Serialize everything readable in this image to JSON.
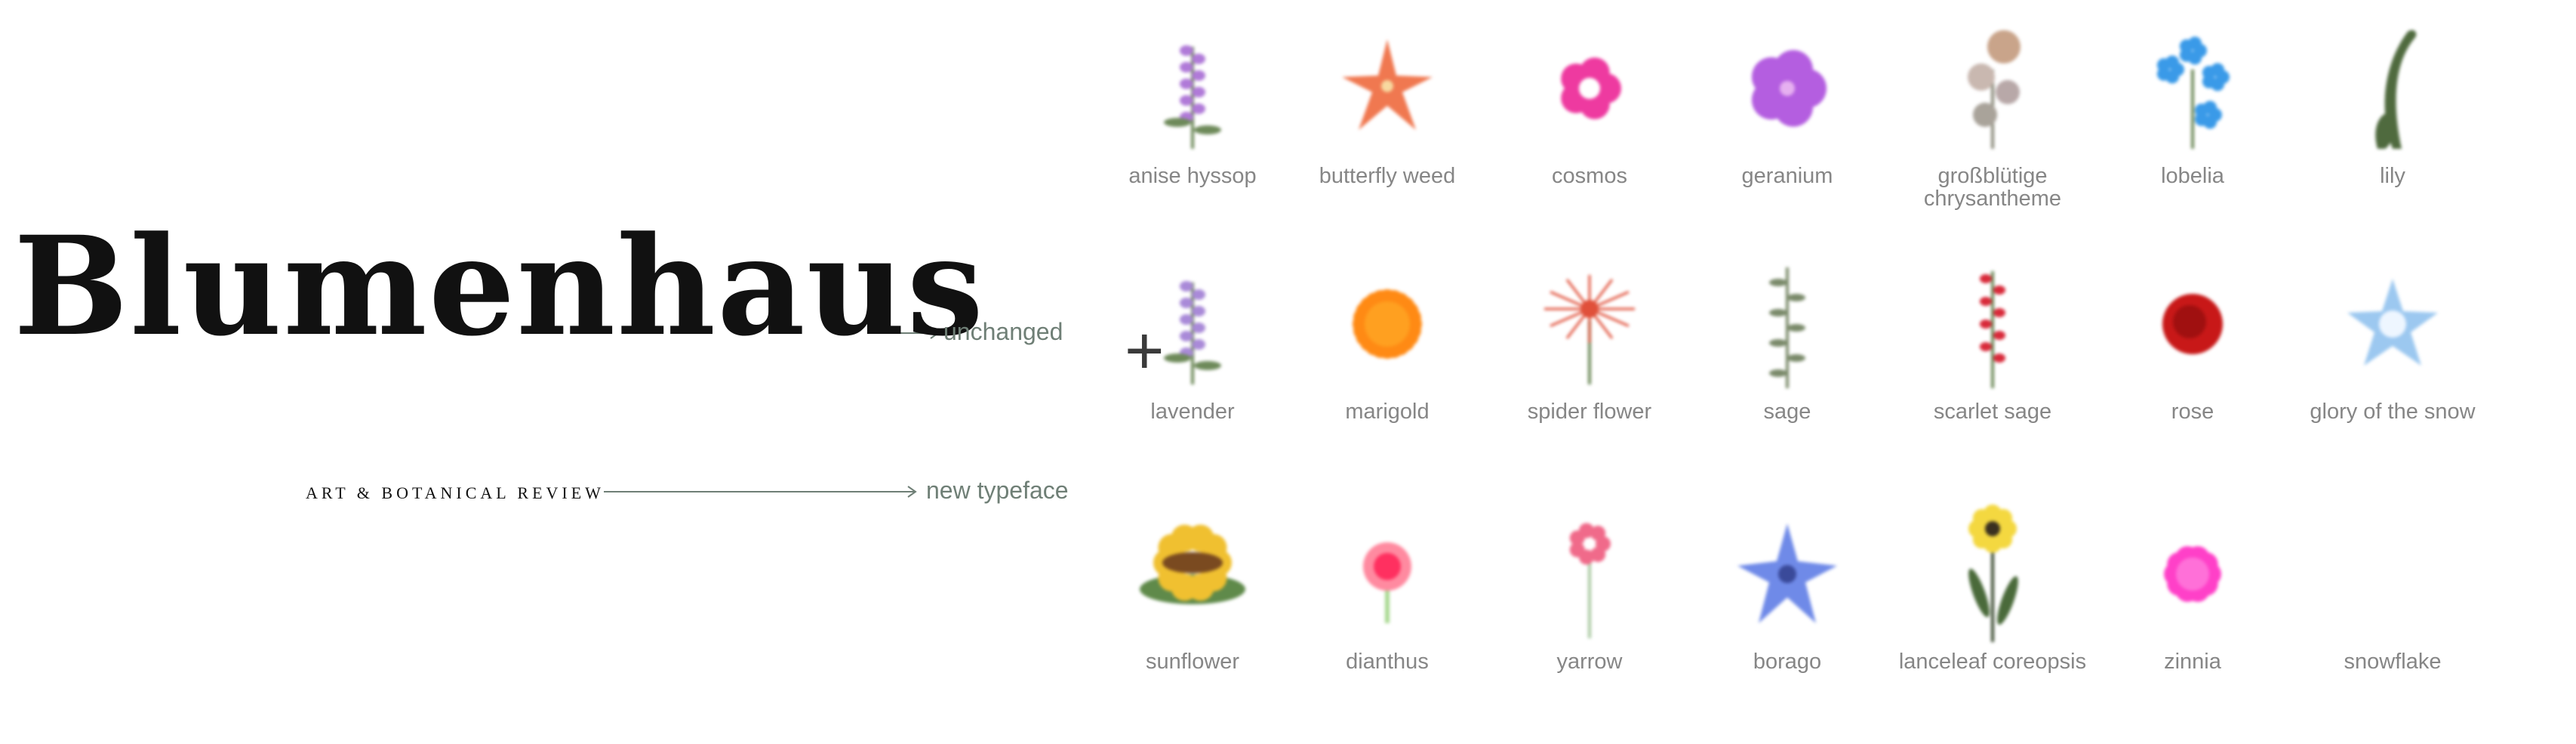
{
  "brand": {
    "logo": "Blumenhaus",
    "tagline": "ART & BOTANICAL REVIEW",
    "note_logo": "unchanged",
    "note_tagline": "new typeface"
  },
  "plus_symbol": "+",
  "flowers": [
    {
      "label": "anise hyssop",
      "icon": "anise-hyssop-icon",
      "color": "#b07ad8"
    },
    {
      "label": "butterfly weed",
      "icon": "butterfly-weed-icon",
      "color": "#f07850"
    },
    {
      "label": "cosmos",
      "icon": "cosmos-icon",
      "color": "#ee3aa0"
    },
    {
      "label": "geranium",
      "icon": "geranium-icon",
      "color": "#b45ee0"
    },
    {
      "label": "großblütige chrysantheme",
      "icon": "chrysanthemum-icon",
      "color": "#c9a48a"
    },
    {
      "label": "lobelia",
      "icon": "lobelia-icon",
      "color": "#3a9ae8"
    },
    {
      "label": "lily",
      "icon": "lily-icon",
      "color": "#4f6a3e"
    },
    {
      "label": "lavender",
      "icon": "lavender-icon",
      "color": "#a98ad8"
    },
    {
      "label": "marigold",
      "icon": "marigold-icon",
      "color": "#ff8a14"
    },
    {
      "label": "spider flower",
      "icon": "spider-flower-icon",
      "color": "#e0503a"
    },
    {
      "label": "sage",
      "icon": "sage-icon",
      "color": "#7a8a6a"
    },
    {
      "label": "scarlet sage",
      "icon": "scarlet-sage-icon",
      "color": "#d82a3a"
    },
    {
      "label": "rose",
      "icon": "rose-icon",
      "color": "#c81818"
    },
    {
      "label": "glory of the snow",
      "icon": "glory-of-the-snow-icon",
      "color": "#9cc8f0"
    },
    {
      "label": "sunflower",
      "icon": "sunflower-icon",
      "color": "#f0c030"
    },
    {
      "label": "dianthus",
      "icon": "dianthus-icon",
      "color": "#ff3060"
    },
    {
      "label": "yarrow",
      "icon": "yarrow-icon",
      "color": "#f06a8a"
    },
    {
      "label": "borago",
      "icon": "borago-icon",
      "color": "#6f8ae8"
    },
    {
      "label": "lanceleaf coreopsis",
      "icon": "coreopsis-icon",
      "color": "#f4d840"
    },
    {
      "label": "zinnia",
      "icon": "zinnia-icon",
      "color": "#ff40c8"
    },
    {
      "label": "snowflake",
      "icon": "snowflake-icon",
      "color": "#ffffff"
    }
  ]
}
